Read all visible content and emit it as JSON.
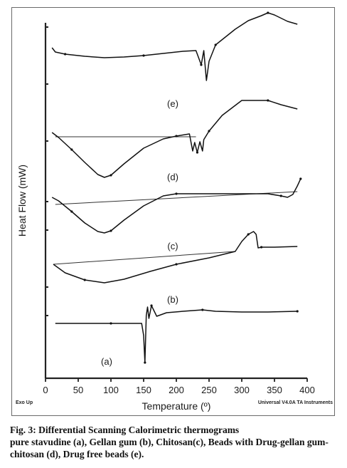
{
  "chart_data": {
    "type": "line",
    "xlabel": "Temperature (º)",
    "ylabel": "Heat Flow (mW)",
    "xlim": [
      0,
      400
    ],
    "xticks": [
      0,
      50,
      100,
      150,
      200,
      250,
      300,
      350,
      400
    ],
    "grid": false,
    "footer_left": "Exo Up",
    "footer_right": "Universal V4.0A TA Instruments",
    "series": [
      {
        "name": "(a)",
        "x": [
          15,
          60,
          100,
          140,
          147,
          150,
          152,
          154,
          156,
          158,
          162,
          170,
          185,
          210,
          240,
          260,
          300,
          340,
          385
        ],
        "y": [
          -31.3,
          -31.3,
          -31.3,
          -31.3,
          -31.3,
          -33.0,
          -36.8,
          -30.2,
          -29.0,
          -30.6,
          -28.8,
          -30.3,
          -29.8,
          -29.6,
          -29.4,
          -29.6,
          -29.7,
          -29.7,
          -29.6
        ]
      },
      {
        "name": "(b)",
        "x": [
          12,
          30,
          60,
          90,
          120,
          160,
          200,
          250,
          290,
          300,
          310,
          318,
          322,
          325,
          330,
          350,
          385
        ],
        "y": [
          -23.0,
          -24.2,
          -25.2,
          -25.6,
          -25.1,
          -24.0,
          -23.0,
          -22.1,
          -21.2,
          -19.8,
          -18.8,
          -18.4,
          -18.8,
          -20.7,
          -20.6,
          -20.6,
          -20.5
        ]
      },
      {
        "name": "(c)",
        "x": [
          10,
          20,
          40,
          60,
          80,
          90,
          100,
          120,
          150,
          180,
          200,
          250,
          300,
          340,
          360,
          370,
          378,
          385,
          390
        ],
        "y": [
          -13.6,
          -14.1,
          -15.6,
          -17.2,
          -18.4,
          -18.6,
          -18.3,
          -16.8,
          -14.8,
          -13.4,
          -13.1,
          -13.1,
          -13.1,
          -13.1,
          -13.4,
          -13.6,
          -13.2,
          -12.0,
          -11.0
        ]
      },
      {
        "name": "(d)",
        "x": [
          10,
          20,
          40,
          60,
          80,
          90,
          100,
          120,
          150,
          180,
          200,
          220,
          225,
          228,
          232,
          236,
          240,
          242,
          250,
          270,
          300,
          320,
          340,
          360,
          385
        ],
        "y": [
          -4.5,
          -5.2,
          -6.9,
          -8.7,
          -10.4,
          -10.8,
          -10.5,
          -8.9,
          -6.7,
          -5.4,
          -5.0,
          -4.7,
          -7.1,
          -5.9,
          -7.3,
          -5.8,
          -7.1,
          -5.5,
          -4.3,
          -2.1,
          0.0,
          0.0,
          0.0,
          -0.6,
          -1.2
        ]
      },
      {
        "name": "(e)",
        "x": [
          10,
          15,
          30,
          60,
          90,
          120,
          150,
          180,
          210,
          230,
          238,
          242,
          246,
          250,
          260,
          290,
          310,
          330,
          340,
          350,
          370,
          385
        ],
        "y": [
          7.4,
          6.8,
          6.5,
          6.2,
          6.0,
          6.1,
          6.3,
          6.6,
          6.9,
          7.0,
          5.0,
          7.0,
          2.8,
          5.5,
          7.8,
          10.0,
          11.2,
          11.9,
          12.3,
          12.0,
          11.1,
          10.7
        ]
      }
    ]
  },
  "caption": {
    "label": "Fig. 3:",
    "title": "Differential Scanning Calorimetric thermograms",
    "body": "pure stavudine (a), Gellan gum (b), Chitosan(c), Beads with Drug-gellan gum- chitosan (d), Drug free beads (e)."
  }
}
